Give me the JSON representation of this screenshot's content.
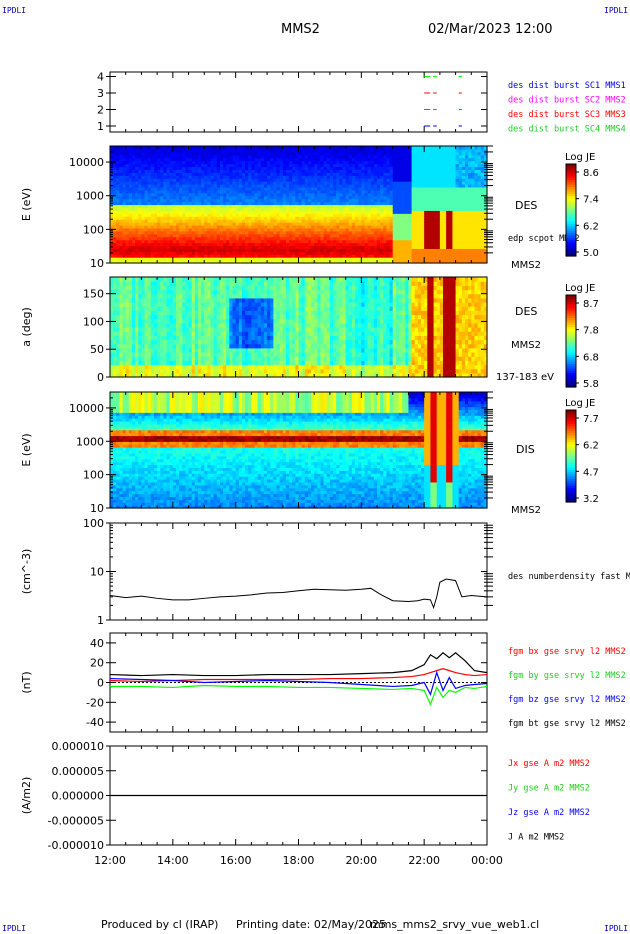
{
  "header": {
    "corner_label": "IPDLI",
    "spacecraft": "MMS2",
    "datetime": "02/Mar/2023 12:00"
  },
  "footer": {
    "produced": "Produced by cl (IRAP)",
    "printing": "Printing date: 02/May/2025",
    "file": "mms_mms2_srvy_vue_web1.cl"
  },
  "colors": {
    "blue": "#0000ff",
    "magenta": "#ff00ff",
    "red": "#ff0000",
    "green": "#00ff00",
    "dgreen": "#22cc22",
    "black": "#000000"
  },
  "chart_data": [
    {
      "id": "burst",
      "type": "line",
      "yticks": [
        "4",
        "3",
        "2",
        "1"
      ],
      "legend": [
        {
          "text": "des dist burst SC1 MMS1",
          "color": "blue"
        },
        {
          "text": "des dist burst SC2 MMS2",
          "color": "magenta"
        },
        {
          "text": "des dist burst SC3 MMS3",
          "color": "red"
        },
        {
          "text": "des dist burst SC4 MMS4",
          "color": "dgreen"
        }
      ],
      "x_range_hours": [
        12,
        24
      ],
      "segments": [
        {
          "level": 4,
          "color": "green",
          "t": [
            [
              22.0,
              22.4
            ],
            [
              23.1,
              23.2
            ]
          ]
        },
        {
          "level": 3,
          "color": "red",
          "t": [
            [
              22.0,
              22.4
            ],
            [
              23.1,
              23.2
            ]
          ]
        },
        {
          "level": 2,
          "color": "magenta",
          "t": [
            [
              22.0,
              22.4
            ],
            [
              23.1,
              23.2
            ]
          ]
        },
        {
          "level": 1,
          "color": "blue",
          "t": [
            [
              22.0,
              22.4
            ],
            [
              23.1,
              23.2
            ]
          ]
        }
      ]
    },
    {
      "id": "des_energy",
      "type": "heatmap",
      "ylabel": "E (eV)",
      "yscale": "log",
      "ylim": [
        10,
        30000
      ],
      "yticks": [
        "10000",
        "1000",
        "100",
        "10"
      ],
      "right_label": "DES",
      "right_note": "edp scpot MMS2",
      "right_bottom": "MMS2",
      "colorbar": {
        "title": "Log JE",
        "ticks": [
          "8.6",
          "7.4",
          "6.2",
          "5.0"
        ],
        "range": [
          5.0,
          8.6
        ]
      }
    },
    {
      "id": "des_pitch",
      "type": "heatmap",
      "ylabel": "a (deg)",
      "ylim": [
        0,
        180
      ],
      "yticks": [
        "150",
        "100",
        "50",
        "0"
      ],
      "right_label": "DES",
      "right_bottom": "MMS2",
      "right_note": "137-183 eV",
      "colorbar": {
        "title": "Log JE",
        "ticks": [
          "8.7",
          "7.8",
          "6.8",
          "5.8"
        ],
        "range": [
          5.8,
          8.7
        ]
      }
    },
    {
      "id": "dis_energy",
      "type": "heatmap",
      "ylabel": "E (eV)",
      "yscale": "log",
      "ylim": [
        10,
        30000
      ],
      "yticks": [
        "10000",
        "1000",
        "100",
        "10"
      ],
      "right_label": "DIS",
      "right_bottom": "MMS2",
      "colorbar": {
        "title": "Log JE",
        "ticks": [
          "7.7",
          "6.2",
          "4.7",
          "3.2"
        ],
        "range": [
          3.2,
          7.7
        ]
      }
    },
    {
      "id": "density",
      "type": "line",
      "ylabel": "(cm^-3)",
      "yscale": "log",
      "ylim": [
        1,
        100
      ],
      "yticks": [
        "100",
        "10",
        "1"
      ],
      "legend": [
        {
          "text": "des numberdensity fast M",
          "color": "black"
        }
      ],
      "x_hours": [
        12.0,
        12.5,
        13.0,
        13.5,
        14.0,
        14.5,
        15.0,
        15.5,
        16.0,
        16.5,
        17.0,
        17.5,
        18.0,
        18.5,
        19.0,
        19.5,
        20.0,
        20.3,
        20.6,
        21.0,
        21.5,
        21.8,
        22.0,
        22.2,
        22.3,
        22.4,
        22.5,
        22.7,
        23.0,
        23.2,
        23.5,
        24.0
      ],
      "y_values": [
        3.2,
        2.9,
        3.1,
        2.8,
        2.6,
        2.6,
        2.8,
        3.0,
        3.1,
        3.3,
        3.6,
        3.7,
        4.0,
        4.3,
        4.2,
        4.1,
        4.3,
        4.5,
        3.4,
        2.5,
        2.4,
        2.5,
        2.7,
        2.6,
        1.8,
        3.0,
        6.0,
        7.0,
        6.5,
        3.0,
        3.2,
        3.0
      ]
    },
    {
      "id": "fgm",
      "type": "line",
      "ylabel": "(nT)",
      "ylim": [
        -50,
        50
      ],
      "yticks": [
        "40",
        "20",
        "0",
        "-20",
        "-40"
      ],
      "legend": [
        {
          "text": "fgm bx gse srvy l2 MMS2",
          "color": "red"
        },
        {
          "text": "fgm by gse srvy l2 MMS2",
          "color": "dgreen"
        },
        {
          "text": "fgm bz gse srvy l2 MMS2",
          "color": "blue"
        },
        {
          "text": "fgm bt gse srvy l2 MMS2",
          "color": "black"
        }
      ],
      "x_hours": [
        12.0,
        13.0,
        14.0,
        15.0,
        16.0,
        17.0,
        18.0,
        19.0,
        20.0,
        21.0,
        21.6,
        22.0,
        22.2,
        22.4,
        22.6,
        22.8,
        23.0,
        23.3,
        23.6,
        24.0
      ],
      "series": [
        {
          "name": "bx",
          "color": "red",
          "values": [
            2,
            1,
            2,
            3,
            3,
            3,
            3,
            4,
            4,
            5,
            6,
            8,
            10,
            12,
            14,
            12,
            10,
            8,
            7,
            8
          ]
        },
        {
          "name": "by",
          "color": "green",
          "values": [
            -4,
            -4,
            -5,
            -3,
            -4,
            -4,
            -5,
            -5,
            -6,
            -7,
            -6,
            -8,
            -22,
            -5,
            -15,
            -8,
            -10,
            -5,
            -6,
            -4
          ]
        },
        {
          "name": "bz",
          "color": "blue",
          "values": [
            4,
            3,
            2,
            0,
            1,
            2,
            1,
            0,
            -2,
            -4,
            -3,
            0,
            -12,
            10,
            -8,
            5,
            -6,
            -3,
            -2,
            -1
          ]
        },
        {
          "name": "bt",
          "color": "black",
          "values": [
            8,
            7,
            8,
            7,
            7,
            8,
            8,
            8,
            9,
            10,
            12,
            18,
            28,
            24,
            30,
            25,
            30,
            22,
            12,
            10
          ]
        }
      ]
    },
    {
      "id": "current",
      "type": "line",
      "ylabel": "(A/m2)",
      "ylim": [
        -1e-05,
        1e-05
      ],
      "yticks": [
        "0.000010",
        "0.000005",
        "0.000000",
        "-0.000005",
        "-0.000010"
      ],
      "legend": [
        {
          "text": "Jx gse A m2 MMS2",
          "color": "red"
        },
        {
          "text": "Jy gse A m2 MMS2",
          "color": "dgreen"
        },
        {
          "text": "Jz gse A m2 MMS2",
          "color": "blue"
        },
        {
          "text": "J A m2 MMS2",
          "color": "black"
        }
      ],
      "x_hours": [
        12,
        24
      ],
      "series": [
        {
          "name": "J",
          "color": "black",
          "values": [
            0,
            0
          ]
        }
      ]
    }
  ],
  "x_axis": {
    "range_hours": [
      12,
      24
    ],
    "tick_labels": [
      "12:00",
      "14:00",
      "16:00",
      "18:00",
      "20:00",
      "22:00",
      "00:00"
    ]
  }
}
